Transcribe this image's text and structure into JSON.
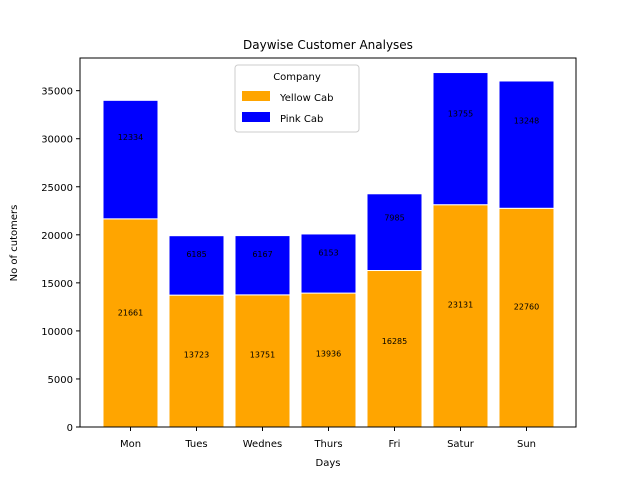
{
  "chart_data": {
    "type": "bar",
    "stacked": true,
    "title": "Daywise Customer Analyses",
    "xlabel": "Days",
    "ylabel": "No of cutomers",
    "categories": [
      "Mon",
      "Tues",
      "Wednes",
      "Thurs",
      "Fri",
      "Satur",
      "Sun"
    ],
    "series": [
      {
        "name": "Yellow Cab",
        "color": "#ffa500",
        "values": [
          21661,
          13723,
          13751,
          13936,
          16285,
          23131,
          22760
        ]
      },
      {
        "name": "Pink Cab",
        "color": "#0000ff",
        "values": [
          12334,
          6185,
          6167,
          6153,
          7985,
          13755,
          13248
        ]
      }
    ],
    "ylim": [
      0,
      38400
    ],
    "yticks": [
      0,
      5000,
      10000,
      15000,
      20000,
      25000,
      30000,
      35000
    ],
    "grid": false,
    "legend": {
      "title": "Company",
      "placement": "top-center"
    }
  }
}
